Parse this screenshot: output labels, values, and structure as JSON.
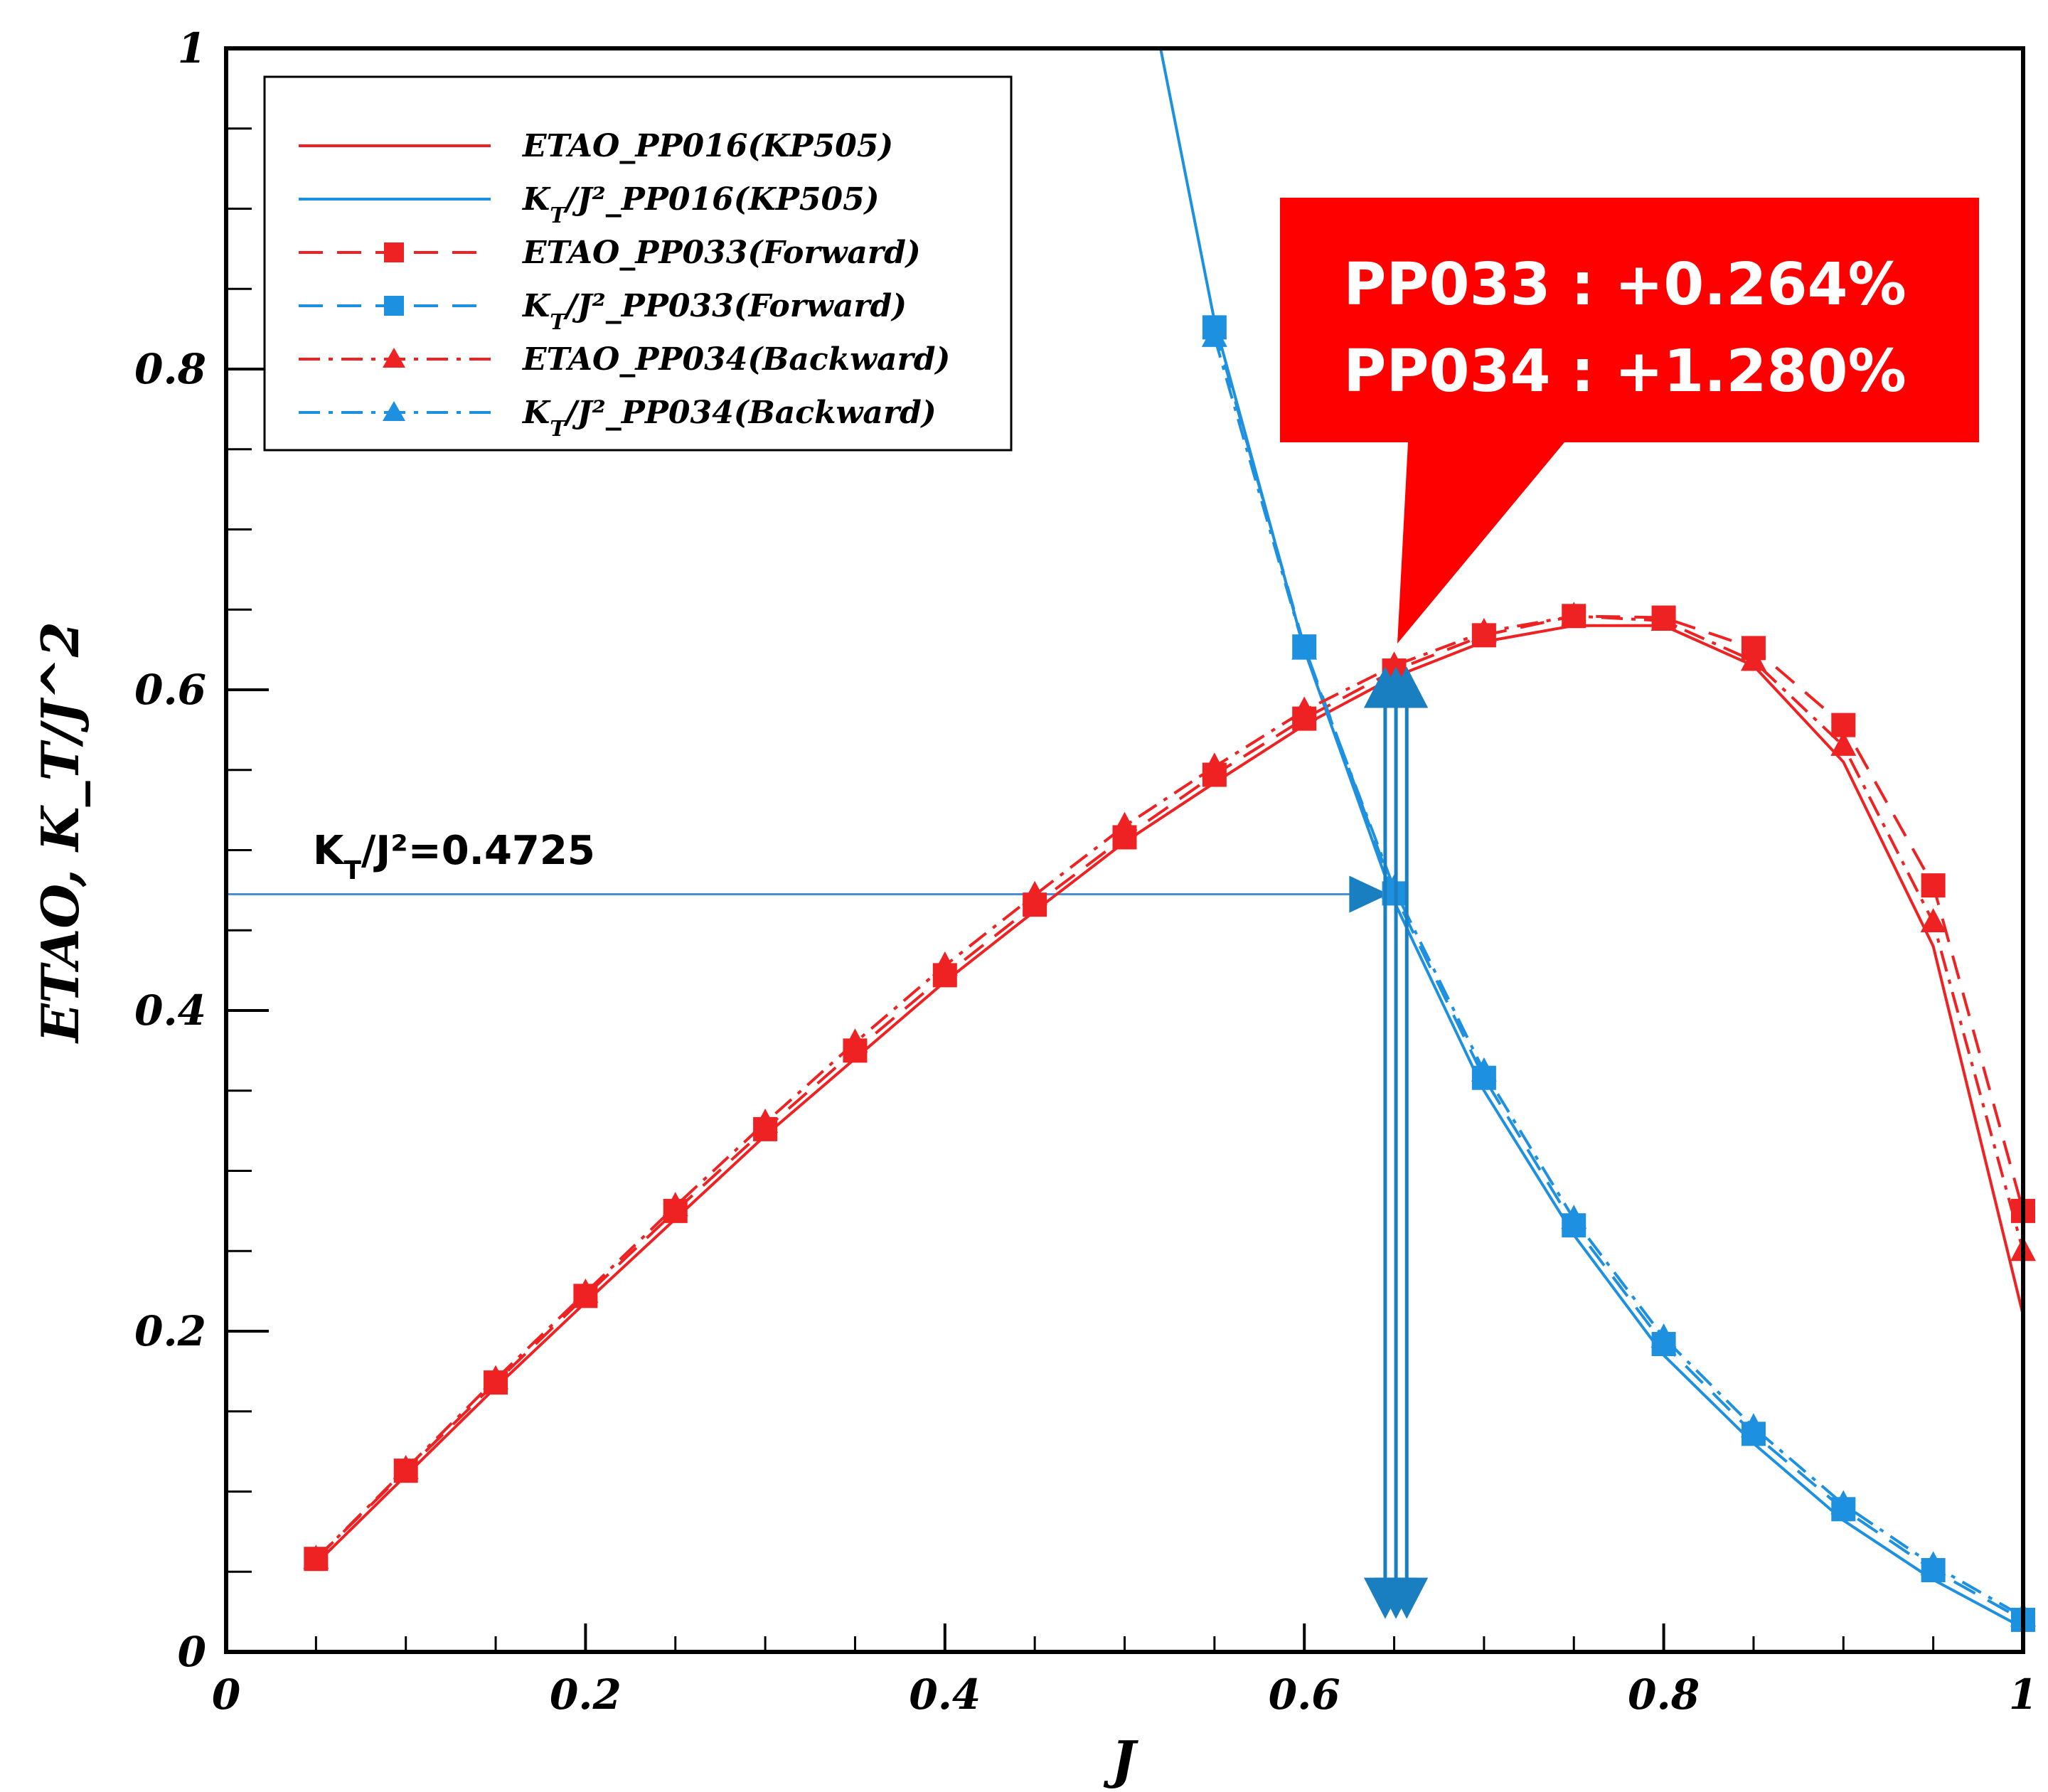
{
  "chart_data": {
    "type": "line",
    "title": "",
    "xlabel": "J",
    "ylabel": "ETAO, K_T/J^2",
    "xlim": [
      0,
      1
    ],
    "ylim": [
      0,
      1
    ],
    "x_ticks": [
      0,
      0.2,
      0.4,
      0.6,
      0.8,
      1
    ],
    "x_tick_labels": [
      "0",
      "0.2",
      "0.4",
      "0.6",
      "0.8",
      "1"
    ],
    "y_ticks": [
      0,
      0.2,
      0.4,
      0.6,
      0.8,
      1
    ],
    "y_tick_labels": [
      "0",
      "0.2",
      "0.4",
      "0.6",
      "0.8",
      "1"
    ],
    "grid": false,
    "legend_position": "top-left",
    "series": [
      {
        "name": "ETAO_PP016(KP505)",
        "legend_main": "ETAO_PP016(KP505)",
        "legend_sub": "",
        "legend_tail": "",
        "color": "#ee2222",
        "style": "solid",
        "marker": "none",
        "x": [
          0.05,
          0.1,
          0.15,
          0.2,
          0.25,
          0.3,
          0.35,
          0.4,
          0.45,
          0.5,
          0.55,
          0.6,
          0.65,
          0.7,
          0.75,
          0.8,
          0.85,
          0.9,
          0.95,
          1.0
        ],
        "values": [
          0.055,
          0.11,
          0.165,
          0.218,
          0.27,
          0.322,
          0.37,
          0.418,
          0.462,
          0.505,
          0.542,
          0.578,
          0.608,
          0.63,
          0.64,
          0.64,
          0.615,
          0.555,
          0.44,
          0.21
        ]
      },
      {
        "name": "KT/J2_PP016(KP505)",
        "legend_main": "K",
        "legend_sub": "T",
        "legend_tail": "/J²_PP016(KP505)",
        "color": "#1e90e0",
        "style": "solid",
        "marker": "none",
        "x": [
          0.52,
          0.55,
          0.6,
          0.65,
          0.7,
          0.75,
          0.8,
          0.85,
          0.9,
          0.95,
          1.0
        ],
        "values": [
          1.0,
          0.83,
          0.625,
          0.468,
          0.35,
          0.26,
          0.185,
          0.13,
          0.082,
          0.045,
          0.015
        ]
      },
      {
        "name": "ETAO_PP033(Forward)",
        "legend_main": "ETAO_PP033(Forward)",
        "legend_sub": "",
        "legend_tail": "",
        "color": "#ee2222",
        "style": "dashed",
        "marker": "square",
        "x": [
          0.05,
          0.1,
          0.15,
          0.2,
          0.25,
          0.3,
          0.35,
          0.4,
          0.45,
          0.5,
          0.55,
          0.6,
          0.65,
          0.7,
          0.75,
          0.8,
          0.85,
          0.9,
          0.95,
          1.0
        ],
        "values": [
          0.058,
          0.113,
          0.168,
          0.222,
          0.275,
          0.326,
          0.375,
          0.422,
          0.466,
          0.508,
          0.547,
          0.582,
          0.612,
          0.634,
          0.646,
          0.645,
          0.626,
          0.578,
          0.478,
          0.275
        ]
      },
      {
        "name": "KT/J2_PP033(Forward)",
        "legend_main": "K",
        "legend_sub": "T",
        "legend_tail": "/J²_PP033(Forward)",
        "color": "#1e90e0",
        "style": "dashed",
        "marker": "square",
        "x": [
          0.55,
          0.6,
          0.65,
          0.7,
          0.75,
          0.8,
          0.85,
          0.9,
          0.95,
          1.0
        ],
        "values": [
          0.826,
          0.627,
          0.473,
          0.358,
          0.266,
          0.192,
          0.136,
          0.089,
          0.051,
          0.02
        ]
      },
      {
        "name": "ETAO_PP034(Backward)",
        "legend_main": "ETAO_PP034(Backward)",
        "legend_sub": "",
        "legend_tail": "",
        "color": "#ee2222",
        "style": "dashdot",
        "marker": "triangle",
        "x": [
          0.05,
          0.1,
          0.15,
          0.2,
          0.25,
          0.3,
          0.35,
          0.4,
          0.45,
          0.5,
          0.55,
          0.6,
          0.65,
          0.7,
          0.75,
          0.8,
          0.85,
          0.9,
          0.95,
          1.0
        ],
        "values": [
          0.058,
          0.114,
          0.17,
          0.224,
          0.278,
          0.33,
          0.38,
          0.428,
          0.472,
          0.515,
          0.552,
          0.587,
          0.615,
          0.636,
          0.646,
          0.643,
          0.618,
          0.565,
          0.455,
          0.25
        ]
      },
      {
        "name": "KT/J2_PP034(Backward)",
        "legend_main": "K",
        "legend_sub": "T",
        "legend_tail": "/J²_PP034(Backward)",
        "color": "#1e90e0",
        "style": "dashdot",
        "marker": "triangle",
        "x": [
          0.55,
          0.6,
          0.65,
          0.7,
          0.75,
          0.8,
          0.85,
          0.9,
          0.95,
          1.0
        ],
        "values": [
          0.82,
          0.625,
          0.476,
          0.362,
          0.27,
          0.196,
          0.14,
          0.092,
          0.054,
          0.022
        ]
      }
    ],
    "annotations": {
      "ref_line_value": 0.4725,
      "ref_label_main": "K",
      "ref_label_sub": "T",
      "ref_label_tail": "/J²=0.4725",
      "arrow_x": [
        0.645,
        0.651,
        0.657
      ],
      "callout_lines": [
        "PP033 : +0.264%",
        "PP034 : +1.280%"
      ],
      "callout_color": "#ff0000",
      "callout_pointer_target": {
        "x": 0.657,
        "y": 0.615
      },
      "arrow_color": "#1a7fc0"
    }
  }
}
